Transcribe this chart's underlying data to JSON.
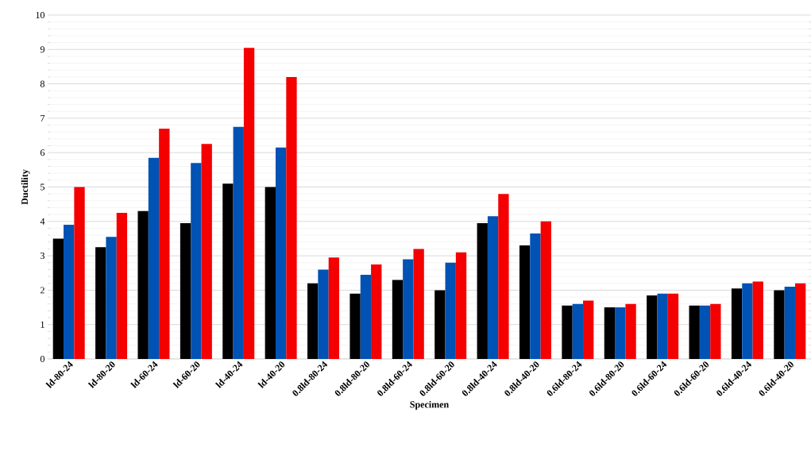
{
  "chart_data": {
    "type": "bar",
    "xlabel": "Specimen",
    "ylabel": "Ductility",
    "categories": [
      "ld-80-24",
      "ld-80-20",
      "ld-60-24",
      "ld-60-20",
      "ld-40-24",
      "ld-40-20",
      "0.8ld-80-24",
      "0.8ld-80-20",
      "0.8ld-60-24",
      "0.8ld-60-20",
      "0.8ld-40-24",
      "0.8ld-40-20",
      "0.6ld-80-24",
      "0.6ld-80-20",
      "0.6ld-60-24",
      "0.6ld-60-20",
      "0.6ld-40-24",
      "0.6ld-40-20"
    ],
    "series": [
      {
        "color": "#000000",
        "values": [
          3.5,
          3.25,
          4.3,
          3.95,
          5.1,
          5.0,
          2.2,
          1.9,
          2.3,
          2.0,
          3.95,
          3.3,
          1.55,
          1.5,
          1.85,
          1.55,
          2.05,
          2.0
        ]
      },
      {
        "color": "#0052b4",
        "values": [
          3.9,
          3.55,
          5.85,
          5.7,
          6.75,
          6.15,
          2.6,
          2.45,
          2.9,
          2.8,
          4.15,
          3.65,
          1.6,
          1.5,
          1.9,
          1.55,
          2.2,
          2.1
        ]
      },
      {
        "color": "#f40000",
        "values": [
          5.0,
          4.25,
          6.7,
          6.25,
          9.05,
          8.2,
          2.95,
          2.75,
          3.2,
          3.1,
          4.8,
          4.0,
          1.7,
          1.6,
          1.9,
          1.6,
          2.25,
          2.2
        ]
      }
    ],
    "ylim": [
      0,
      10
    ],
    "yticks": [
      0,
      1,
      2,
      3,
      4,
      5,
      6,
      7,
      8,
      9,
      10
    ],
    "grid": "y"
  }
}
